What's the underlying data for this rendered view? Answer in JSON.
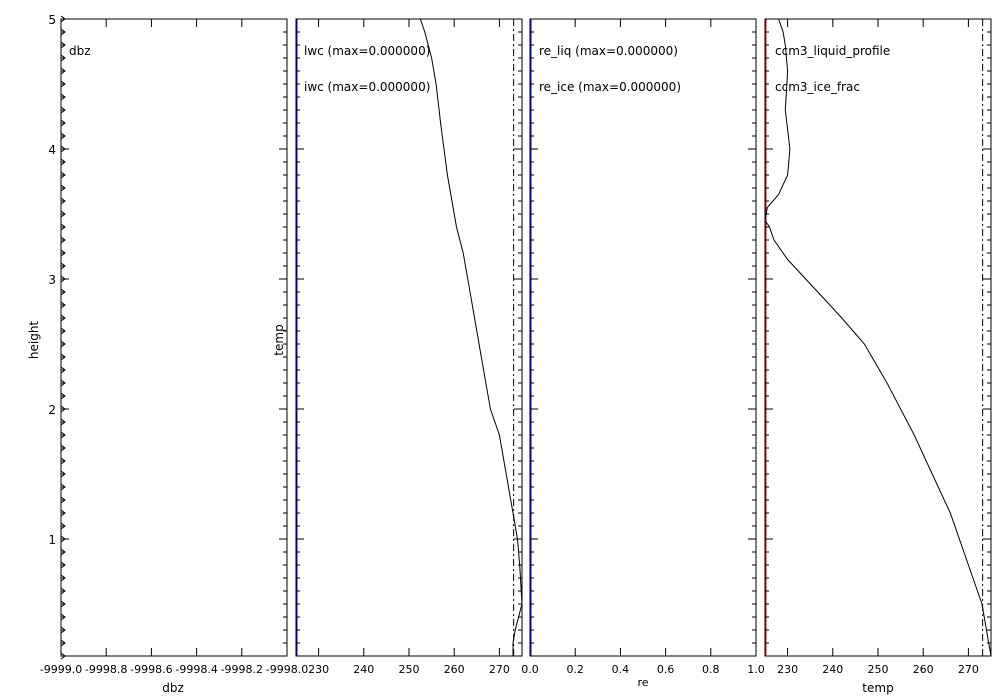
{
  "chart_data": [
    {
      "type": "line",
      "panel": "dbz",
      "legend": [
        {
          "text": "dbz",
          "color": "#000000"
        }
      ],
      "xlabel": "dbz",
      "ylabel": "height",
      "xticks": [
        "-9999.0",
        "-9998.8",
        "-9998.6",
        "-9998.4",
        "-9998.2",
        "-9998.0"
      ],
      "xlim": [
        -9999.0,
        -9998.0
      ],
      "ylim": [
        0.1,
        5.0
      ],
      "yticks": [
        1,
        2,
        3,
        4,
        5
      ],
      "series": [
        {
          "color": "#000000",
          "x": [
            -9999.0,
            -9999.0,
            -9999.0,
            -9999.0,
            -9999.0,
            -9999.0,
            -9999.0,
            -9999.0,
            -9999.0,
            -9999.0,
            -9999.0,
            -9999.0,
            -9999.0,
            -9999.0,
            -9999.0,
            -9999.0,
            -9999.0,
            -9999.0,
            -9999.0,
            -9999.0,
            -9999.0,
            -9999.0,
            -9999.0,
            -9999.0,
            -9999.0,
            -9999.0,
            -9999.0,
            -9999.0,
            -9999.0,
            -9999.0,
            -9999.0,
            -9999.0,
            -9999.0,
            -9999.0,
            -9999.0,
            -9999.0,
            -9999.0,
            -9999.0,
            -9999.0,
            -9999.0,
            -9999.0,
            -9999.0,
            -9999.0,
            -9999.0,
            -9999.0,
            -9999.0,
            -9999.0,
            -9999.0,
            -9999.0,
            -9999.0
          ],
          "y": [
            0.1,
            0.2,
            0.3,
            0.4,
            0.5,
            0.6,
            0.7,
            0.8,
            0.9,
            1.0,
            1.1,
            1.2,
            1.3,
            1.4,
            1.5,
            1.6,
            1.7,
            1.8,
            1.9,
            2.0,
            2.1,
            2.2,
            2.3,
            2.4,
            2.5,
            2.6,
            2.7,
            2.8,
            2.9,
            3.0,
            3.1,
            3.2,
            3.3,
            3.4,
            3.5,
            3.6,
            3.7,
            3.8,
            3.9,
            4.0,
            4.1,
            4.2,
            4.3,
            4.4,
            4.5,
            4.6,
            4.7,
            4.8,
            4.9,
            5.0
          ]
        }
      ]
    },
    {
      "type": "line",
      "panel": "water content",
      "legend": [
        {
          "text": "lwc (max=0.000000)",
          "color": "#ff0000"
        },
        {
          "text": "iwc (max=0.000000)",
          "color": "#0000ff"
        }
      ],
      "ylabel": "temp",
      "xticks": [
        "230",
        "240",
        "250",
        "260",
        "270"
      ],
      "xlim": [
        225,
        275
      ],
      "ylim": [
        0.1,
        5.0
      ],
      "vlines": [
        {
          "x": 273.15,
          "style": "dashdot"
        }
      ],
      "series": [
        {
          "name": "temp",
          "color": "#000000",
          "x": [
            273,
            273,
            273.5,
            275,
            274.5,
            274,
            273,
            271.5,
            270,
            268,
            266,
            264,
            262,
            260.5,
            258.5,
            257,
            256,
            255,
            253.5,
            252.5
          ],
          "y": [
            0.1,
            0.2,
            0.3,
            0.5,
            0.8,
            1.0,
            1.2,
            1.5,
            1.8,
            2.0,
            2.4,
            2.8,
            3.2,
            3.4,
            3.8,
            4.2,
            4.5,
            4.7,
            4.9,
            5.0
          ]
        }
      ]
    },
    {
      "type": "line",
      "panel": "effective radius",
      "legend": [
        {
          "text": "re_liq (max=0.000000)",
          "color": "#ff0000"
        },
        {
          "text": "re_ice (max=0.000000)",
          "color": "#0000ff"
        }
      ],
      "xlabel": "re",
      "xticks": [
        "0.0",
        "0.2",
        "0.4",
        "0.6",
        "0.8",
        "1.0"
      ],
      "xlim": [
        0.0,
        1.0
      ],
      "ylim": [
        0.1,
        5.0
      ],
      "series": []
    },
    {
      "type": "line",
      "panel": "ccm3",
      "legend": [
        {
          "text": "ccm3_liquid_profile",
          "color": "#ff0000"
        },
        {
          "text": "ccm3_ice_frac",
          "color": "#0000ff"
        }
      ],
      "xlabel": "temp",
      "xticks": [
        "230",
        "240",
        "250",
        "260",
        "270"
      ],
      "xlim": [
        225,
        275
      ],
      "ylim": [
        0.1,
        5.0
      ],
      "vlines": [
        {
          "x": 273.15,
          "style": "dashdot"
        }
      ],
      "series": [
        {
          "name": "temp",
          "color": "#000000",
          "x": [
            275,
            274.5,
            273,
            270,
            266,
            262,
            258,
            252,
            247,
            242,
            238,
            234,
            230,
            227,
            226,
            225,
            225.5,
            228,
            230,
            230.5,
            229.5,
            230,
            229.5,
            229,
            228
          ],
          "y": [
            0.1,
            0.2,
            0.5,
            0.8,
            1.2,
            1.5,
            1.8,
            2.2,
            2.5,
            2.7,
            2.85,
            3.0,
            3.15,
            3.3,
            3.4,
            3.45,
            3.55,
            3.65,
            3.8,
            4.0,
            4.3,
            4.6,
            4.8,
            4.9,
            5.0
          ]
        }
      ]
    }
  ]
}
